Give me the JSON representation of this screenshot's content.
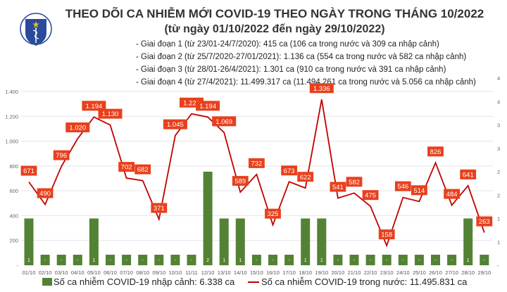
{
  "header": {
    "logo_text": "BỘ Y TẾ · MINISTRY OF HEALTH",
    "title": "THEO DÕI CA NHIỄM MỚI COVID-19 THEO NGÀY TRONG THÁNG 10/2022",
    "subtitle": "(từ ngày 01/10/2022 đến ngày 29/10/2022)",
    "phases": [
      "- Giai đoạn 1 (từ 23/01-24/7/2020): 415 ca (106 ca trong nước và 309 ca nhập cảnh)",
      "- Giai đoạn 2 (từ 25/7/2020-27/01/2021): 1.136 ca (554 ca trong nước và 582 ca nhập cảnh)",
      "- Giai đoạn 3 (từ 28/01-26/4/2021): 1.301 ca (910 ca trong nước và 391 ca nhập cảnh)",
      "- Giai đoạn 4 (từ 27/4/2021): 11.499.317 ca (11.494.261 ca trong nước và 5.056 ca nhập cảnh)"
    ]
  },
  "chart_data": {
    "type": "bar+line",
    "categories": [
      "01/10",
      "02/10",
      "03/10",
      "04/10",
      "05/10",
      "06/10",
      "07/10",
      "08/10",
      "09/10",
      "10/10",
      "11/11",
      "12/10",
      "13/10",
      "14/10",
      "15/10",
      "16/10",
      "17/10",
      "18/10",
      "19/10",
      "20/10",
      "21/10",
      "22/10",
      "23/10",
      "24/10",
      "25/10",
      "26/10",
      "27/10",
      "28/10",
      "29/10"
    ],
    "series": [
      {
        "name": "Số ca nhiễm COVID-19 nhập cảnh: 6.338 ca",
        "type": "bar",
        "axis": "right",
        "color": "#548235",
        "values": [
          1,
          0,
          0,
          0,
          1,
          0,
          0,
          0,
          0,
          0,
          0,
          2,
          1,
          1,
          0,
          0,
          0,
          1,
          1,
          0,
          0,
          0,
          0,
          0,
          0,
          0,
          0,
          1,
          0
        ]
      },
      {
        "name": "Số ca nhiễm COVID-19 trong nước: 11.495.831 ca",
        "type": "line",
        "axis": "left",
        "color": "#c00000",
        "label_color": "#e8401c",
        "values": [
          671,
          490,
          796,
          1020,
          1194,
          1130,
          702,
          682,
          371,
          1045,
          1220,
          1194,
          1069,
          589,
          732,
          325,
          673,
          622,
          1336,
          541,
          582,
          475,
          158,
          546,
          514,
          826,
          484,
          641,
          263
        ]
      }
    ],
    "left_axis": {
      "ylim": [
        0,
        1400
      ],
      "ticks": [
        "-",
        "200",
        "400",
        "600",
        "800",
        "1.000",
        "1.200",
        "1.400"
      ]
    },
    "right_axis": {
      "ylim": [
        0,
        4
      ],
      "ticks": [
        "-",
        "1",
        "1",
        "2",
        "2",
        "3",
        "3",
        "4",
        "4"
      ]
    },
    "zero_bar_label": "-",
    "grid": true,
    "legend": "bottom"
  }
}
